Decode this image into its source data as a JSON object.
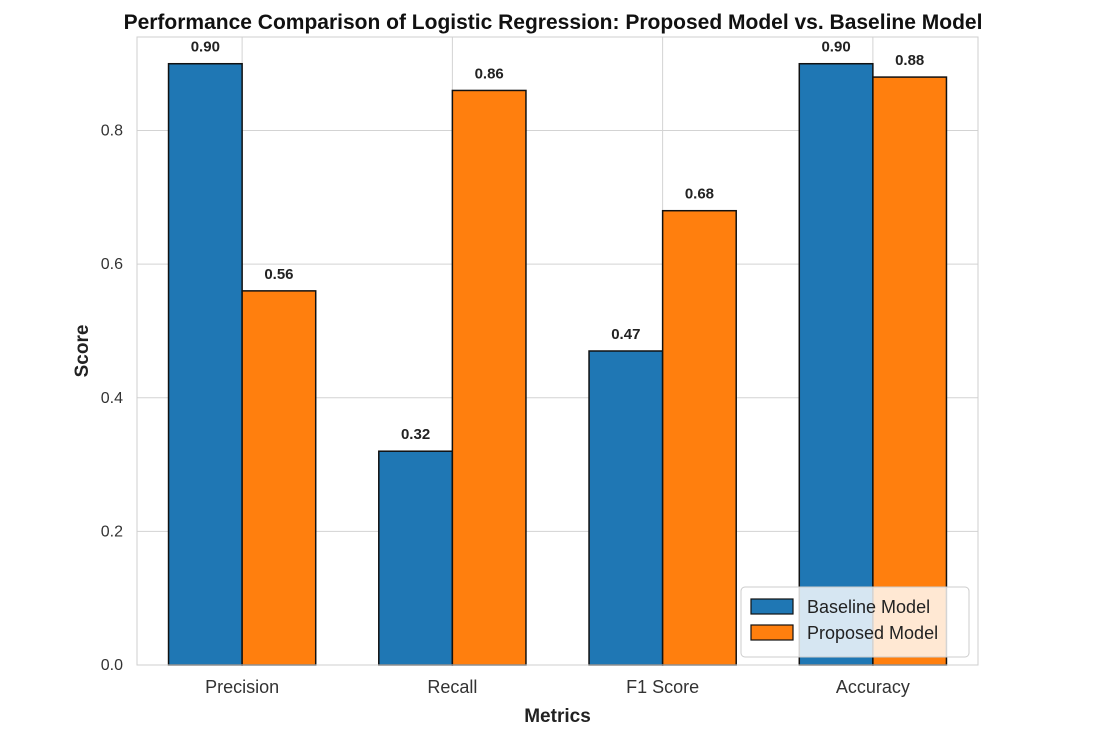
{
  "chart_data": {
    "type": "bar",
    "title": "Performance Comparison of Logistic Regression: Proposed Model vs. Baseline Model",
    "xlabel": "Metrics",
    "ylabel": "Score",
    "categories": [
      "Precision",
      "Recall",
      "F1 Score",
      "Accuracy"
    ],
    "series": [
      {
        "name": "Baseline Model",
        "color": "#1f77b4",
        "values": [
          0.9,
          0.32,
          0.47,
          0.9
        ],
        "labels": [
          "0.90",
          "0.32",
          "0.47",
          "0.90"
        ]
      },
      {
        "name": "Proposed Model",
        "color": "#ff7f0e",
        "values": [
          0.56,
          0.86,
          0.68,
          0.88
        ],
        "labels": [
          "0.56",
          "0.86",
          "0.68",
          "0.88"
        ]
      }
    ],
    "ylim": [
      0,
      0.94
    ],
    "yticks": [
      0.0,
      0.2,
      0.4,
      0.6,
      0.8
    ],
    "ytick_labels": [
      "0.0",
      "0.2",
      "0.4",
      "0.6",
      "0.8"
    ],
    "grid": true,
    "legend_position": "lower-right"
  }
}
